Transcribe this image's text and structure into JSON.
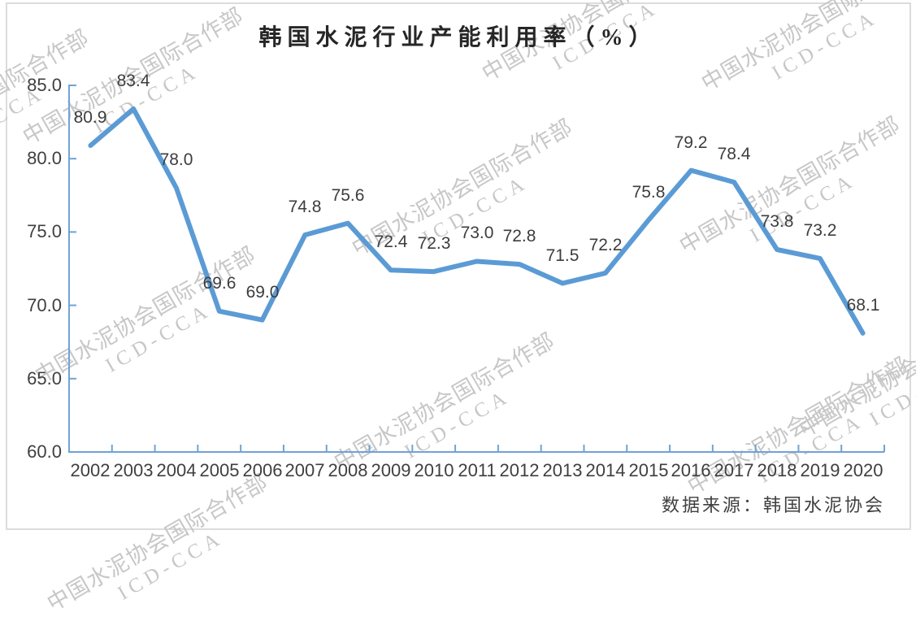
{
  "chart_data": {
    "type": "line",
    "title": "韩国水泥行业产能利用率（%）",
    "categories": [
      "2002",
      "2003",
      "2004",
      "2005",
      "2006",
      "2007",
      "2008",
      "2009",
      "2010",
      "2011",
      "2012",
      "2013",
      "2014",
      "2015",
      "2016",
      "2017",
      "2018",
      "2019",
      "2020"
    ],
    "values": [
      80.9,
      83.4,
      78.0,
      69.6,
      69.0,
      74.8,
      75.6,
      72.4,
      72.3,
      73.0,
      72.8,
      71.5,
      72.2,
      75.8,
      79.2,
      78.4,
      73.8,
      73.2,
      68.1
    ],
    "value_labels": [
      "80.9",
      "83.4",
      "78.0",
      "69.6",
      "69.0",
      "74.8",
      "75.6",
      "72.4",
      "72.3",
      "73.0",
      "72.8",
      "71.5",
      "72.2",
      "75.8",
      "79.2",
      "78.4",
      "73.8",
      "73.2",
      "68.1"
    ],
    "ylim": [
      60,
      85
    ],
    "ytick_step": 5,
    "ytick_labels": [
      "60.0",
      "65.0",
      "70.0",
      "75.0",
      "80.0",
      "85.0"
    ],
    "xlabel": "",
    "ylabel": "",
    "grid": false,
    "legend": "none",
    "line_color": "#5B9BD5",
    "axis_color": "#6FA3D6",
    "text_color": "#3F3F3F",
    "source": "数据来源：韩国水泥协会",
    "watermark": {
      "line1": "中国水泥协会国际合作部",
      "line2": "ICD-CCA"
    }
  }
}
